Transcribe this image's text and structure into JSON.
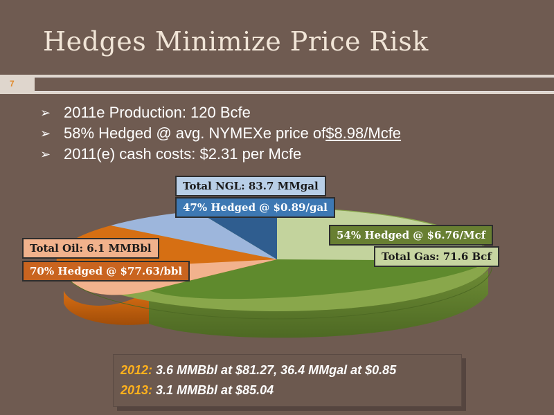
{
  "slide": {
    "title": "Hedges Minimize Price Risk",
    "page_number": "7"
  },
  "bullets": [
    {
      "text": "2011e Production: 120 Bcfe"
    },
    {
      "text_before": "58% Hedged @ avg. NYMEXe price of ",
      "highlight": "$8.98/Mcfe"
    },
    {
      "text": "2011(e) cash costs: $2.31 per Mcfe"
    }
  ],
  "chart": {
    "slices": [
      {
        "name": "Total Gas",
        "value": 71.6,
        "color": "#8aa558",
        "top_color": "#c3d39d"
      },
      {
        "name": "Total Oil",
        "value": 6.1,
        "color": "#d56a10",
        "top_color": "#f2b28d"
      },
      {
        "name": "Total NGL",
        "value": 83.7,
        "color": "#2f5d8f",
        "top_color": "#9db6dc"
      }
    ],
    "labels": {
      "ngl_total": "Total NGL: 83.7 MMgal",
      "ngl_hedged": "47% Hedged @ $0.89/gal",
      "gas_hedged": "54% Hedged @ $6.76/Mcf",
      "gas_total": "Total Gas:  71.6 Bcf",
      "oil_total": "Total Oil:  6.1 MMBbl",
      "oil_hedged": "70% Hedged @ $77.63/bbl"
    }
  },
  "note": {
    "line1_year": "2012:",
    "line1_text": " 3.6 MMBbl at $81.27, 36.4 MMgal at $0.85",
    "line2_year": "2013:",
    "line2_text": " 3.1 MMBbl at $85.04"
  },
  "colors": {
    "background": "#6f5b51",
    "title": "#f1e5d7",
    "accent": "#ffb11d"
  }
}
